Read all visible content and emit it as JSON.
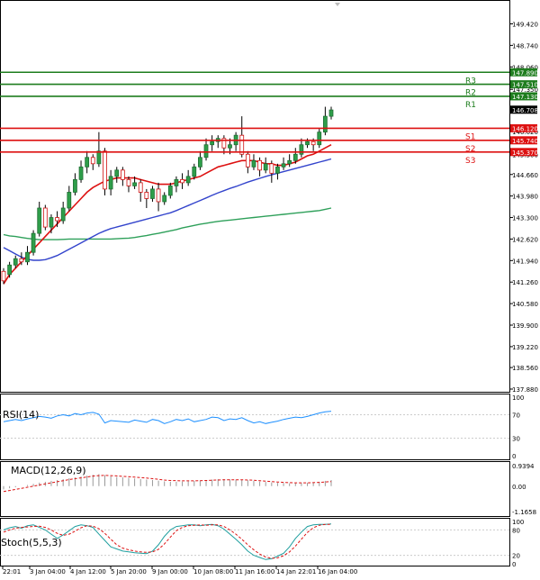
{
  "chart_data": [
    {
      "type": "candlestick",
      "title": "",
      "ylim": [
        137.88,
        150.06
      ],
      "y_ticks": [
        "149.420",
        "148.740",
        "148.060",
        "147.350",
        "146.708",
        "146.020",
        "145.300",
        "144.660",
        "143.980",
        "143.300",
        "142.620",
        "141.940",
        "141.260",
        "140.580",
        "139.900",
        "139.220",
        "138.560",
        "137.880"
      ],
      "x_ticks": [
        "22:01",
        "3 Jan 04:00",
        "4 Jan 12:00",
        "5 Jan 20:00",
        "9 Jan 00:00",
        "10 Jan 08:00",
        "11 Jan 16:00",
        "14 Jan 22:01",
        "16 Jan 04:00"
      ],
      "last_price": "146.708",
      "levels": [
        {
          "name": "R3",
          "value": 147.89,
          "label": "147.890",
          "color": "#1e7d1e"
        },
        {
          "name": "R2",
          "value": 147.51,
          "label": "147.510",
          "color": "#1e7d1e"
        },
        {
          "name": "R1",
          "value": 147.13,
          "label": "147.130",
          "color": "#1e7d1e"
        },
        {
          "name": "S1",
          "value": 146.12,
          "label": "146.120",
          "color": "#dd1111"
        },
        {
          "name": "S2",
          "value": 145.74,
          "label": "145.740",
          "color": "#dd1111"
        },
        {
          "name": "S3",
          "value": 145.37,
          "label": "145.370",
          "color": "#dd1111"
        }
      ],
      "candles": [
        [
          141.6,
          141.3,
          141.7,
          141.2
        ],
        [
          141.5,
          141.8,
          141.9,
          141.4
        ],
        [
          141.8,
          142.0,
          142.1,
          141.7
        ],
        [
          142.0,
          141.9,
          142.2,
          141.8
        ],
        [
          141.9,
          142.2,
          142.4,
          141.8
        ],
        [
          142.2,
          142.8,
          142.9,
          142.1
        ],
        [
          142.8,
          143.6,
          143.8,
          142.7
        ],
        [
          143.6,
          143.0,
          143.7,
          142.9
        ],
        [
          143.0,
          143.3,
          143.4,
          142.8
        ],
        [
          143.3,
          143.2,
          143.5,
          143.0
        ],
        [
          143.2,
          143.6,
          143.8,
          143.1
        ],
        [
          143.6,
          144.1,
          144.3,
          143.5
        ],
        [
          144.1,
          144.5,
          144.7,
          144.0
        ],
        [
          144.5,
          144.9,
          145.1,
          144.4
        ],
        [
          144.9,
          145.2,
          145.4,
          144.7
        ],
        [
          145.2,
          145.0,
          145.3,
          144.8
        ],
        [
          145.0,
          145.4,
          146.0,
          144.9
        ],
        [
          145.4,
          144.2,
          145.5,
          144.0
        ],
        [
          144.2,
          144.6,
          144.8,
          144.0
        ],
        [
          144.6,
          144.8,
          144.9,
          144.4
        ],
        [
          144.8,
          144.5,
          144.9,
          144.3
        ],
        [
          144.5,
          144.3,
          144.6,
          144.1
        ],
        [
          144.3,
          144.4,
          144.6,
          144.2
        ],
        [
          144.4,
          144.1,
          144.5,
          143.8
        ],
        [
          144.1,
          143.9,
          144.2,
          143.6
        ],
        [
          143.9,
          144.2,
          144.3,
          143.8
        ],
        [
          144.2,
          143.8,
          144.4,
          143.5
        ],
        [
          143.8,
          144.0,
          144.1,
          143.7
        ],
        [
          144.0,
          144.3,
          144.4,
          143.9
        ],
        [
          144.3,
          144.5,
          144.6,
          144.1
        ],
        [
          144.5,
          144.4,
          144.7,
          144.2
        ],
        [
          144.4,
          144.6,
          144.8,
          144.3
        ],
        [
          144.6,
          144.9,
          145.0,
          144.5
        ],
        [
          144.9,
          145.2,
          145.4,
          144.8
        ],
        [
          145.2,
          145.6,
          145.8,
          145.1
        ],
        [
          145.6,
          145.7,
          145.9,
          145.4
        ],
        [
          145.7,
          145.8,
          145.9,
          145.5
        ],
        [
          145.8,
          145.5,
          145.9,
          145.3
        ],
        [
          145.5,
          145.6,
          145.8,
          145.3
        ],
        [
          145.6,
          145.9,
          146.0,
          145.4
        ],
        [
          145.9,
          145.3,
          146.5,
          145.2
        ],
        [
          145.3,
          144.9,
          145.4,
          144.7
        ],
        [
          144.9,
          145.1,
          145.3,
          144.8
        ],
        [
          145.1,
          144.8,
          145.2,
          144.6
        ],
        [
          144.8,
          145.0,
          145.2,
          144.7
        ],
        [
          145.0,
          144.7,
          145.1,
          144.4
        ],
        [
          144.7,
          144.9,
          145.0,
          144.5
        ],
        [
          144.9,
          145.0,
          145.2,
          144.8
        ],
        [
          145.0,
          145.1,
          145.3,
          144.9
        ],
        [
          145.1,
          145.3,
          145.5,
          145.0
        ],
        [
          145.3,
          145.6,
          145.8,
          145.2
        ],
        [
          145.6,
          145.7,
          145.8,
          145.5
        ],
        [
          145.7,
          145.6,
          145.8,
          145.4
        ],
        [
          145.6,
          146.0,
          146.1,
          145.5
        ],
        [
          146.0,
          146.5,
          146.8,
          145.9
        ],
        [
          146.5,
          146.7,
          146.8,
          146.4
        ]
      ],
      "ma_red": [
        141.2,
        141.5,
        141.7,
        141.9,
        142.1,
        142.3,
        142.5,
        142.7,
        142.9,
        143.1,
        143.3,
        143.5,
        143.7,
        143.9,
        144.1,
        144.25,
        144.35,
        144.45,
        144.5,
        144.55,
        144.55,
        144.55,
        144.55,
        144.5,
        144.45,
        144.4,
        144.35,
        144.35,
        144.35,
        144.4,
        144.45,
        144.5,
        144.55,
        144.6,
        144.7,
        144.8,
        144.9,
        144.95,
        145.0,
        145.05,
        145.1,
        145.1,
        145.1,
        145.05,
        145.0,
        145.0,
        144.95,
        144.95,
        145.0,
        145.05,
        145.15,
        145.25,
        145.3,
        145.4,
        145.5,
        145.6
      ],
      "ma_blue": [
        142.35,
        142.25,
        142.15,
        142.05,
        141.98,
        141.95,
        141.95,
        141.97,
        142.03,
        142.1,
        142.2,
        142.3,
        142.4,
        142.5,
        142.6,
        142.7,
        142.8,
        142.88,
        142.95,
        143.0,
        143.05,
        143.1,
        143.15,
        143.2,
        143.25,
        143.3,
        143.35,
        143.4,
        143.45,
        143.52,
        143.6,
        143.68,
        143.76,
        143.84,
        143.92,
        144.0,
        144.08,
        144.15,
        144.22,
        144.28,
        144.35,
        144.42,
        144.48,
        144.54,
        144.6,
        144.65,
        144.7,
        144.75,
        144.8,
        144.85,
        144.9,
        144.95,
        145.0,
        145.05,
        145.1,
        145.15
      ],
      "ma_green": [
        142.76,
        142.72,
        142.7,
        142.67,
        142.64,
        142.62,
        142.6,
        142.6,
        142.6,
        142.6,
        142.61,
        142.62,
        142.62,
        142.62,
        142.62,
        142.62,
        142.62,
        142.62,
        142.62,
        142.63,
        142.64,
        142.65,
        142.67,
        142.7,
        142.73,
        142.77,
        142.8,
        142.84,
        142.88,
        142.92,
        142.97,
        143.01,
        143.05,
        143.09,
        143.12,
        143.15,
        143.18,
        143.2,
        143.22,
        143.24,
        143.26,
        143.28,
        143.3,
        143.32,
        143.34,
        143.36,
        143.38,
        143.4,
        143.42,
        143.44,
        143.46,
        143.48,
        143.5,
        143.52,
        143.56,
        143.6
      ]
    },
    {
      "type": "line",
      "name": "RSI(14)",
      "label": "RSI(14)",
      "y_ticks": [
        "100",
        "70",
        "30",
        "0"
      ],
      "ylim": [
        0,
        100
      ],
      "values": [
        58,
        60,
        62,
        60,
        63,
        65,
        67,
        66,
        64,
        68,
        70,
        68,
        72,
        70,
        73,
        74,
        71,
        56,
        60,
        59,
        58,
        57,
        61,
        59,
        57,
        62,
        60,
        55,
        58,
        62,
        60,
        63,
        58,
        60,
        62,
        66,
        65,
        60,
        63,
        62,
        65,
        60,
        56,
        58,
        55,
        57,
        59,
        62,
        64,
        66,
        65,
        67,
        70,
        73,
        75,
        76
      ]
    },
    {
      "type": "bar+line",
      "name": "MACD(12,26,9)",
      "label": "MACD(12,26,9)",
      "y_ticks": [
        "0.9394",
        "0.00",
        "-1.1658"
      ],
      "ylim": [
        -1.1658,
        0.9394
      ],
      "histogram": [
        -0.15,
        -0.1,
        -0.05,
        0.0,
        0.05,
        0.1,
        0.16,
        0.2,
        0.24,
        0.28,
        0.32,
        0.36,
        0.4,
        0.44,
        0.48,
        0.52,
        0.55,
        0.5,
        0.45,
        0.42,
        0.4,
        0.38,
        0.35,
        0.32,
        0.3,
        0.28,
        0.25,
        0.22,
        0.2,
        0.2,
        0.21,
        0.22,
        0.24,
        0.26,
        0.28,
        0.3,
        0.32,
        0.32,
        0.31,
        0.3,
        0.3,
        0.27,
        0.24,
        0.21,
        0.19,
        0.17,
        0.15,
        0.14,
        0.13,
        0.13,
        0.14,
        0.15,
        0.17,
        0.2,
        0.24,
        0.28
      ],
      "signal": [
        -0.25,
        -0.2,
        -0.15,
        -0.1,
        -0.05,
        0.0,
        0.05,
        0.1,
        0.15,
        0.2,
        0.25,
        0.3,
        0.34,
        0.38,
        0.42,
        0.46,
        0.48,
        0.49,
        0.48,
        0.47,
        0.45,
        0.43,
        0.41,
        0.39,
        0.37,
        0.34,
        0.31,
        0.28,
        0.26,
        0.25,
        0.24,
        0.24,
        0.24,
        0.25,
        0.26,
        0.27,
        0.28,
        0.29,
        0.29,
        0.29,
        0.29,
        0.28,
        0.27,
        0.25,
        0.23,
        0.21,
        0.19,
        0.17,
        0.16,
        0.15,
        0.15,
        0.15,
        0.16,
        0.17,
        0.19,
        0.21
      ]
    },
    {
      "type": "line",
      "name": "Stoch(5,5,3)",
      "label": "Stoch(5,5,3)",
      "y_ticks": [
        "100",
        "80",
        "20",
        "0"
      ],
      "ylim": [
        0,
        100
      ],
      "k": [
        80,
        85,
        88,
        84,
        90,
        92,
        86,
        80,
        70,
        60,
        68,
        78,
        88,
        92,
        90,
        86,
        70,
        55,
        40,
        35,
        30,
        28,
        26,
        25,
        24,
        30,
        45,
        65,
        80,
        88,
        90,
        92,
        92,
        90,
        92,
        93,
        90,
        82,
        70,
        58,
        45,
        30,
        20,
        15,
        10,
        12,
        18,
        25,
        40,
        60,
        75,
        88,
        92,
        93,
        93,
        94
      ],
      "d": [
        75,
        80,
        84,
        86,
        87,
        88,
        89,
        86,
        80,
        72,
        67,
        70,
        77,
        85,
        90,
        89,
        83,
        72,
        58,
        45,
        37,
        33,
        30,
        28,
        27,
        28,
        34,
        47,
        63,
        78,
        86,
        90,
        91,
        92,
        91,
        92,
        92,
        88,
        80,
        70,
        58,
        45,
        33,
        23,
        16,
        13,
        14,
        19,
        28,
        42,
        58,
        74,
        85,
        91,
        93,
        93
      ]
    }
  ]
}
